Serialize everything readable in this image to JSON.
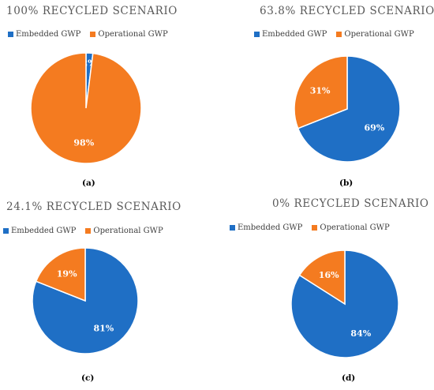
{
  "colors": {
    "embedded": "#1F6FC5",
    "operational": "#F47B20",
    "stroke": "#ffffff"
  },
  "chart_data": [
    {
      "type": "pie",
      "title": "100% RECYCLED SCENARIO",
      "panel_label": "(a)",
      "legend": [
        "Embedded GWP",
        "Operational GWP"
      ],
      "categories": [
        "Embedded GWP",
        "Operational GWP"
      ],
      "values": [
        2,
        98
      ],
      "labels": [
        "2%",
        "98%"
      ]
    },
    {
      "type": "pie",
      "title": "63.8% RECYCLED SCENARIO",
      "panel_label": "(b)",
      "legend": [
        "Embedded GWP",
        "Operational GWP"
      ],
      "categories": [
        "Embedded GWP",
        "Operational GWP"
      ],
      "values": [
        69,
        31
      ],
      "labels": [
        "69%",
        "31%"
      ]
    },
    {
      "type": "pie",
      "title": "24.1% RECYCLED SCENARIO",
      "panel_label": "(c)",
      "legend": [
        "Embedded GWP",
        "Operational GWP"
      ],
      "categories": [
        "Embedded GWP",
        "Operational GWP"
      ],
      "values": [
        81,
        19
      ],
      "labels": [
        "81%",
        "19%"
      ]
    },
    {
      "type": "pie",
      "title": "0% RECYCLED SCENARIO",
      "panel_label": "(d)",
      "legend": [
        "Embedded GWP",
        "Operational GWP"
      ],
      "categories": [
        "Embedded GWP",
        "Operational GWP"
      ],
      "values": [
        84,
        16
      ],
      "labels": [
        "84%",
        "16%"
      ]
    }
  ]
}
